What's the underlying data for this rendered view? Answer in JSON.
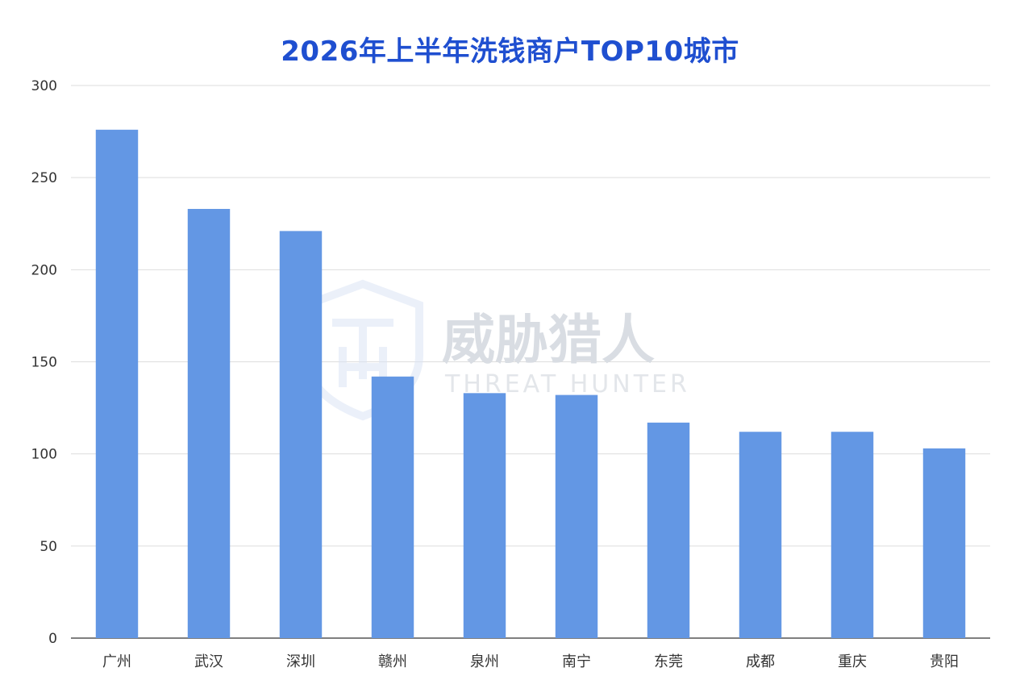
{
  "chart_data": {
    "type": "bar",
    "title": "2026年上半年洗钱商户TOP10城市",
    "categories": [
      "广州",
      "武汉",
      "深圳",
      "赣州",
      "泉州",
      "南宁",
      "东莞",
      "成都",
      "重庆",
      "贵阳"
    ],
    "values": [
      276,
      233,
      221,
      142,
      133,
      132,
      117,
      112,
      112,
      103
    ],
    "ylim": [
      0,
      300
    ],
    "yticks": [
      0,
      50,
      100,
      150,
      200,
      250,
      300
    ],
    "grid": true,
    "bar_color": "#6397e4"
  },
  "watermark": {
    "name_cn": "威胁猎人",
    "name_en": "THREAT HUNTER",
    "icon": "shield-th-logo"
  }
}
